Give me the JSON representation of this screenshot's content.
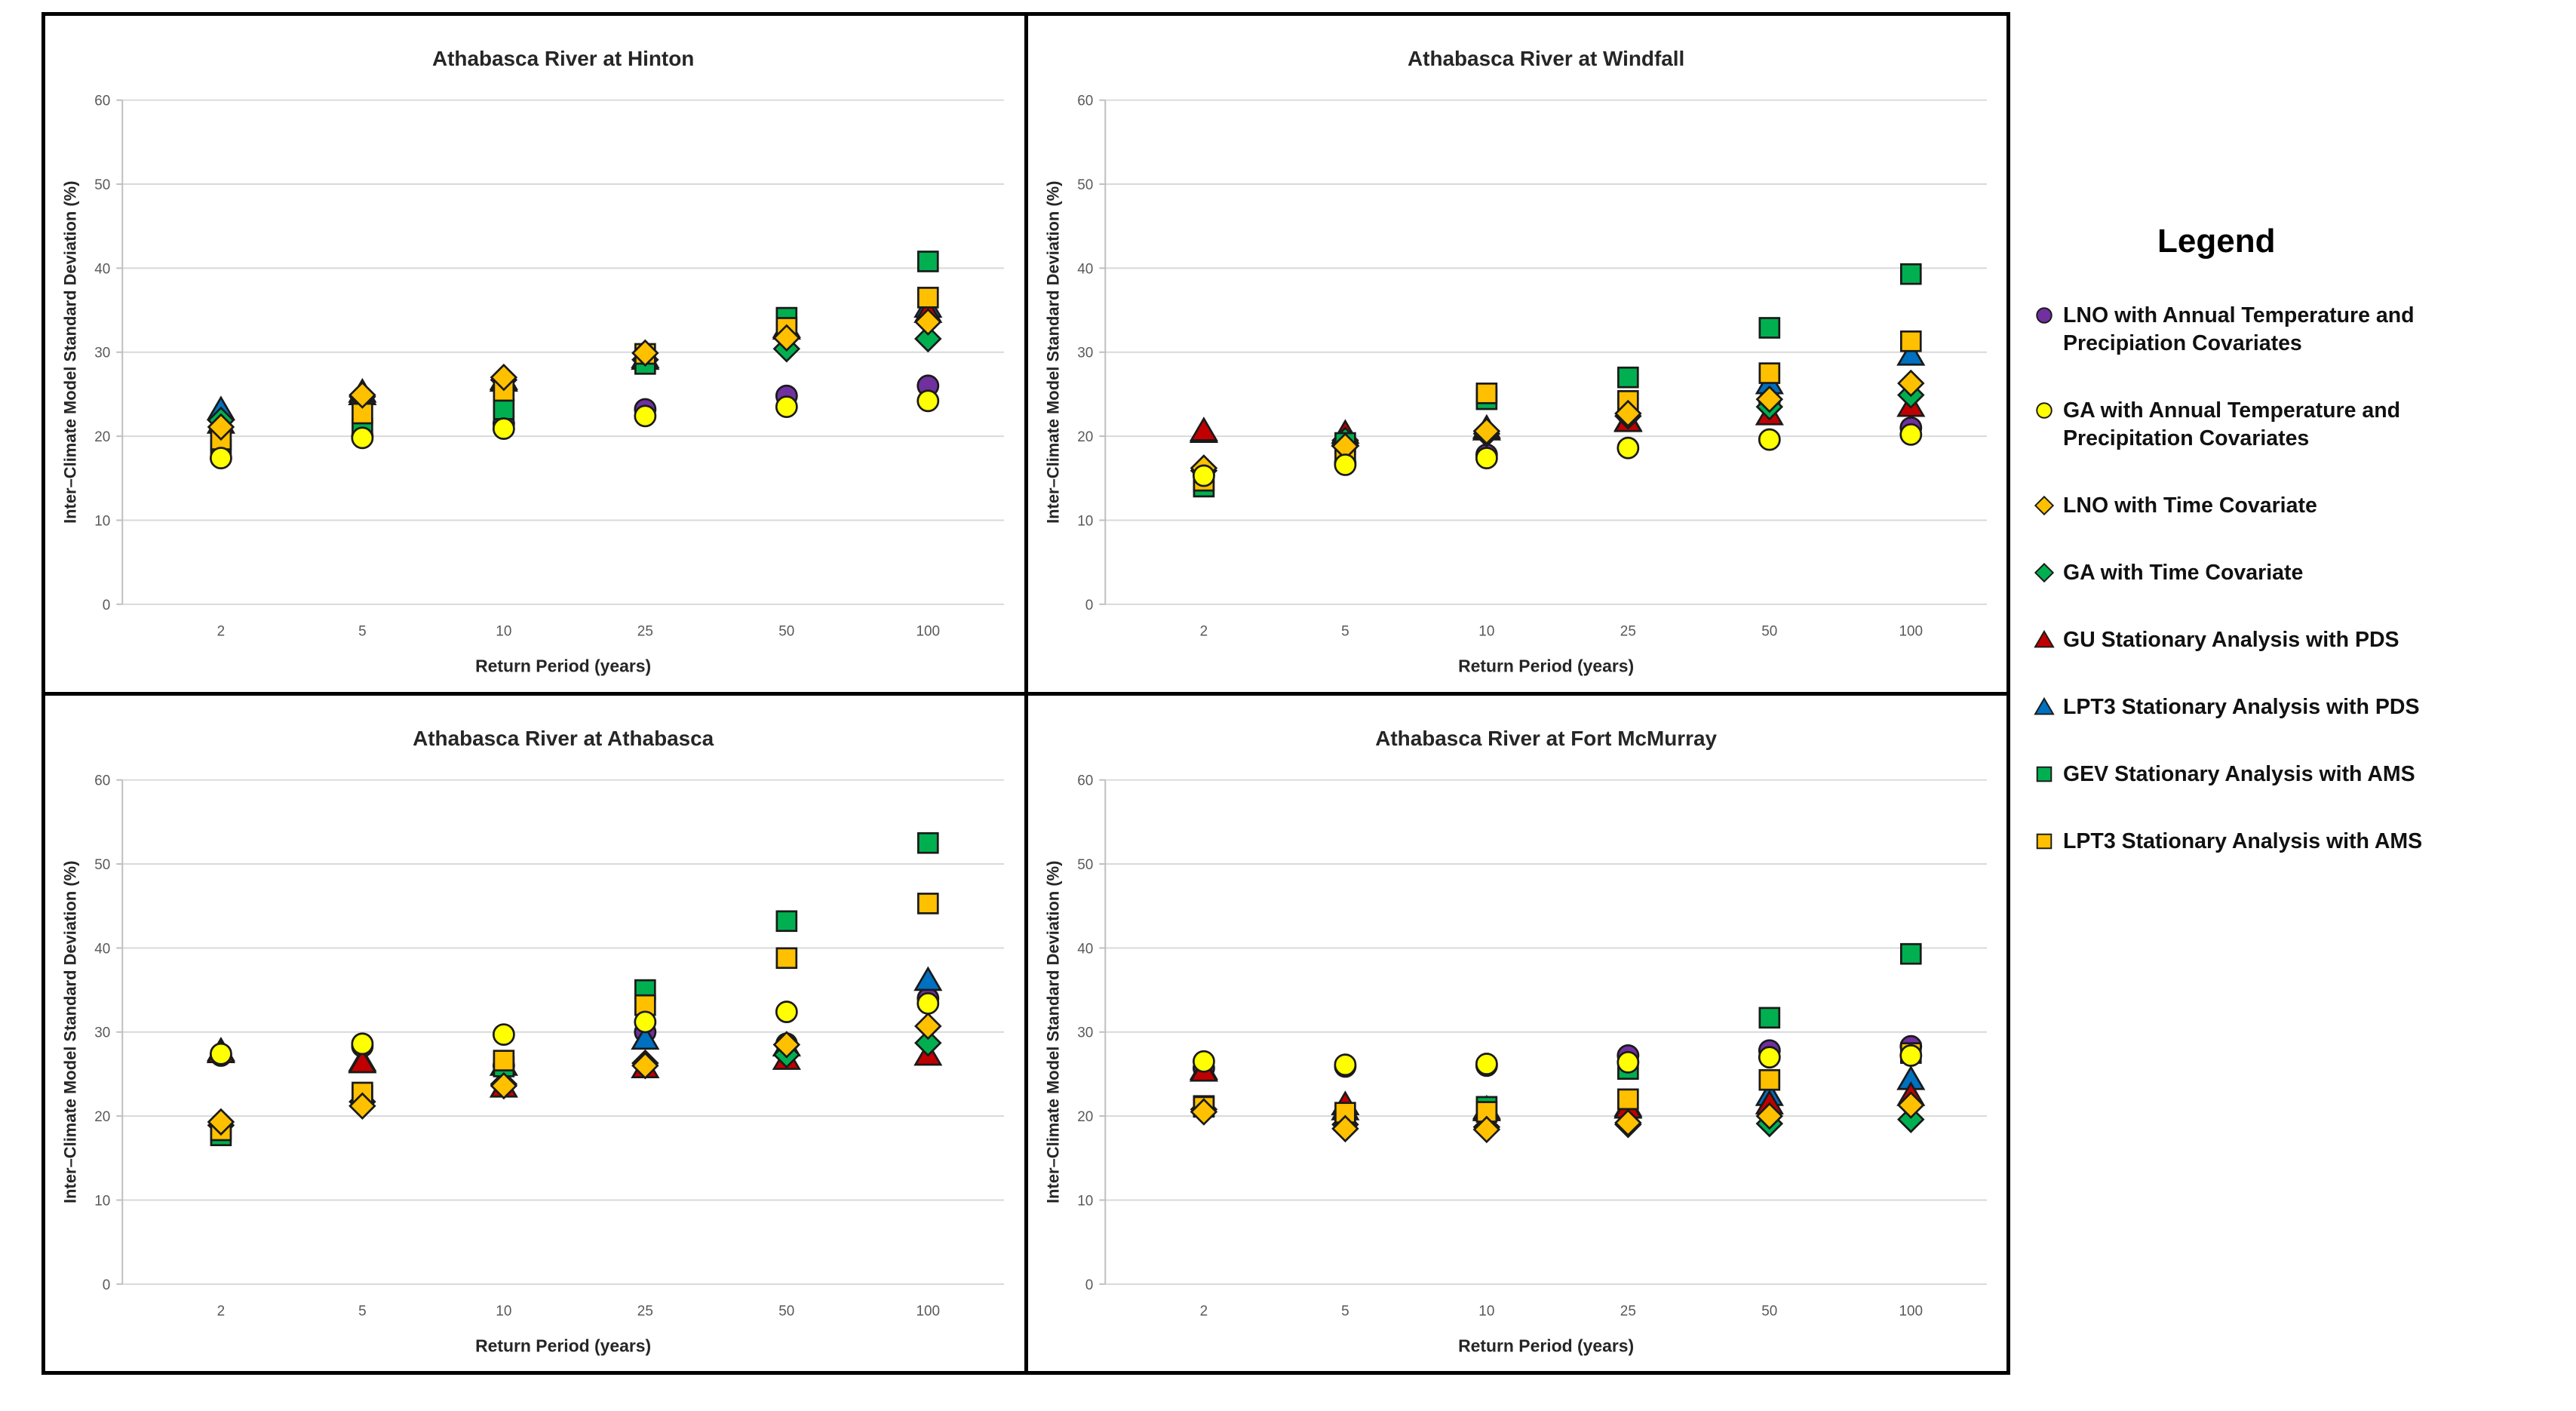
{
  "legend": {
    "title": "Legend",
    "items": [
      {
        "id": "lno_cov",
        "label": "LNO with Annual Temperature and Precipiation Covariates",
        "marker": "circle",
        "color": "#7030A0"
      },
      {
        "id": "ga_cov",
        "label": "GA with Annual Temperature and Precipitation Covariates",
        "marker": "circle",
        "color": "#FFFF00"
      },
      {
        "id": "lno_time",
        "label": "LNO with Time Covariate",
        "marker": "diamond",
        "color": "#FFC000"
      },
      {
        "id": "ga_time",
        "label": "GA with Time Covariate",
        "marker": "diamond",
        "color": "#00B050"
      },
      {
        "id": "gu_pds",
        "label": "GU Stationary Analysis with PDS",
        "marker": "triangle",
        "color": "#C00000"
      },
      {
        "id": "lpt3_pds",
        "label": "LPT3 Stationary Analysis with PDS",
        "marker": "triangle",
        "color": "#0070C0"
      },
      {
        "id": "gev_ams",
        "label": "GEV Stationary Analysis with AMS",
        "marker": "square",
        "color": "#00B050"
      },
      {
        "id": "lpt3_ams",
        "label": "LPT3 Stationary Analysis with AMS",
        "marker": "square",
        "color": "#FFC000"
      }
    ]
  },
  "chart_data": [
    {
      "type": "scatter",
      "title": "Athabasca River at Hinton",
      "xlabel": "Return Period (years)",
      "ylabel": "Inter–Climate Model Standard Deviation (%)",
      "x_categories": [
        "2",
        "5",
        "10",
        "25",
        "50",
        "100"
      ],
      "ylim": [
        0,
        60
      ],
      "yticks": [
        0,
        10,
        20,
        30,
        40,
        50,
        60
      ],
      "grid": true,
      "series": {
        "lno_cov": [
          20.6,
          20.0,
          21.5,
          23.2,
          24.8,
          26.0
        ],
        "ga_cov": [
          17.4,
          19.8,
          20.9,
          22.4,
          23.5,
          24.2
        ],
        "lno_time": [
          21.1,
          24.9,
          27.0,
          29.9,
          31.7,
          33.6
        ],
        "ga_time": [
          21.9,
          24.7,
          26.7,
          29.1,
          30.4,
          31.6
        ],
        "gu_pds": [
          21.6,
          25.3,
          26.6,
          29.2,
          32.8,
          34.8
        ],
        "lpt3_pds": [
          23.2,
          25.0,
          26.8,
          29.4,
          33.0,
          35.4
        ],
        "gev_ams": [
          18.4,
          20.9,
          23.2,
          28.6,
          34.1,
          40.8
        ],
        "lpt3_ams": [
          19.6,
          22.7,
          25.4,
          29.8,
          32.9,
          36.5
        ]
      }
    },
    {
      "type": "scatter",
      "title": "Athabasca River at Windfall",
      "xlabel": "Return Period (years)",
      "ylabel": "Inter–Climate Model Standard Deviation (%)",
      "x_categories": [
        "2",
        "5",
        "10",
        "25",
        "50",
        "100"
      ],
      "ylim": [
        0,
        60
      ],
      "yticks": [
        0,
        10,
        20,
        30,
        40,
        50,
        60
      ],
      "grid": true,
      "series": {
        "lno_cov": [
          15.4,
          16.8,
          17.8,
          22.6,
          24.2,
          21.0
        ],
        "ga_cov": [
          15.3,
          16.6,
          17.4,
          18.6,
          19.6,
          20.2
        ],
        "lno_time": [
          16.2,
          18.8,
          20.6,
          22.7,
          24.4,
          26.3
        ],
        "ga_time": [
          15.9,
          19.5,
          20.3,
          22.4,
          23.5,
          24.9
        ],
        "gu_pds": [
          20.7,
          20.4,
          21.0,
          21.8,
          22.6,
          23.6
        ],
        "lpt3_pds": [
          20.5,
          20.1,
          20.8,
          21.9,
          26.3,
          29.7
        ],
        "gev_ams": [
          14.0,
          19.2,
          24.4,
          27.0,
          32.9,
          39.3
        ],
        "lpt3_ams": [
          14.7,
          17.7,
          25.1,
          24.2,
          27.5,
          31.3
        ]
      }
    },
    {
      "type": "scatter",
      "title": "Athabasca River at Athabasca",
      "xlabel": "Return Period (years)",
      "ylabel": "Inter–Climate Model Standard Deviation (%)",
      "x_categories": [
        "2",
        "5",
        "10",
        "25",
        "50",
        "100"
      ],
      "ylim": [
        0,
        60
      ],
      "yticks": [
        0,
        10,
        20,
        30,
        40,
        50,
        60
      ],
      "grid": true,
      "series": {
        "lno_cov": [
          27.2,
          28.3,
          26.0,
          30.0,
          28.6,
          34.0
        ],
        "ga_cov": [
          27.4,
          28.6,
          29.7,
          31.2,
          32.4,
          33.4
        ],
        "lno_time": [
          19.3,
          21.2,
          23.6,
          26.0,
          28.5,
          30.7
        ],
        "ga_time": [
          18.9,
          21.7,
          23.8,
          26.3,
          27.3,
          28.7
        ],
        "gu_pds": [
          27.6,
          26.4,
          23.5,
          25.8,
          26.8,
          27.3
        ],
        "lpt3_pds": [
          27.8,
          26.6,
          26.1,
          29.2,
          28.4,
          36.2
        ],
        "gev_ams": [
          17.7,
          22.4,
          25.9,
          35.0,
          43.2,
          52.5
        ],
        "lpt3_ams": [
          18.3,
          22.8,
          26.6,
          33.2,
          38.8,
          45.3
        ]
      }
    },
    {
      "type": "scatter",
      "title": "Athabasca River at Fort McMurray",
      "xlabel": "Return Period (years)",
      "ylabel": "Inter–Climate Model Standard Deviation (%)",
      "x_categories": [
        "2",
        "5",
        "10",
        "25",
        "50",
        "100"
      ],
      "ylim": [
        0,
        60
      ],
      "yticks": [
        0,
        10,
        20,
        30,
        40,
        50,
        60
      ],
      "grid": true,
      "series": {
        "lno_cov": [
          25.7,
          25.9,
          26.0,
          27.2,
          27.8,
          28.3
        ],
        "ga_cov": [
          26.5,
          26.1,
          26.2,
          26.4,
          27.0,
          27.2
        ],
        "lno_time": [
          20.5,
          18.5,
          18.4,
          19.2,
          20.0,
          21.3
        ],
        "ga_time": [
          20.8,
          19.0,
          18.7,
          19.0,
          19.1,
          19.6
        ],
        "gu_pds": [
          25.4,
          21.4,
          20.9,
          21.0,
          21.5,
          22.5
        ],
        "lpt3_pds": [
          25.6,
          20.8,
          20.7,
          21.2,
          22.5,
          24.4
        ],
        "gev_ams": [
          21.2,
          19.5,
          21.1,
          25.6,
          31.7,
          39.3
        ],
        "lpt3_ams": [
          21.1,
          20.4,
          20.5,
          22.0,
          24.3,
          27.5
        ]
      }
    }
  ]
}
